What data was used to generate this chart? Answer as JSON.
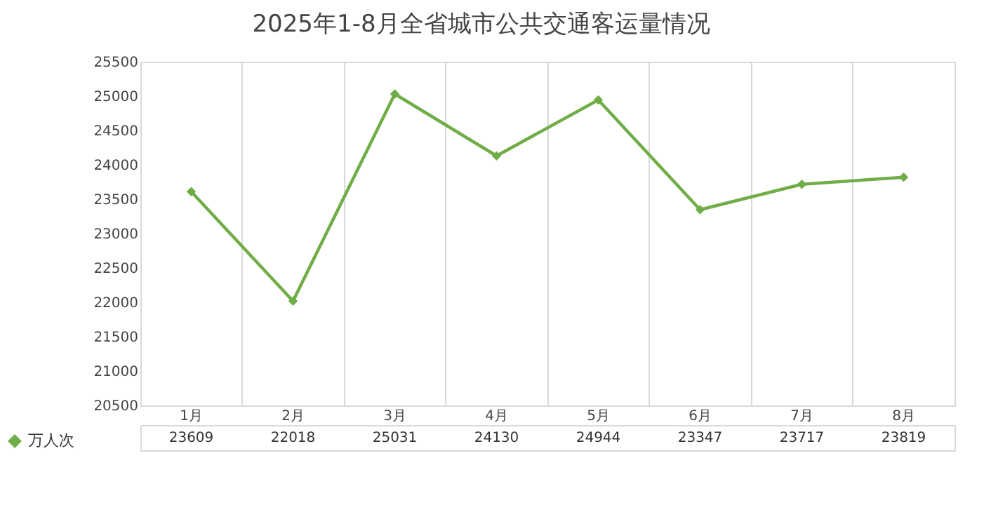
{
  "chart_data": {
    "type": "line",
    "title": "2025年1-8月全省城市公共交通客运量情况",
    "categories": [
      "1月",
      "2月",
      "3月",
      "4月",
      "5月",
      "6月",
      "7月",
      "8月"
    ],
    "series": [
      {
        "name": "万人次",
        "color": "#70ad47",
        "values": [
          23609,
          22018,
          25031,
          24130,
          24944,
          23347,
          23717,
          23819
        ]
      }
    ],
    "ylim": [
      20500,
      25500
    ],
    "yticks": [
      20500,
      21000,
      21500,
      22000,
      22500,
      23000,
      23500,
      24000,
      24500,
      25000,
      25500
    ],
    "grid": "x",
    "legend": "bottom left",
    "marker": "diamond",
    "line_style": "solid",
    "data_labels": true
  }
}
